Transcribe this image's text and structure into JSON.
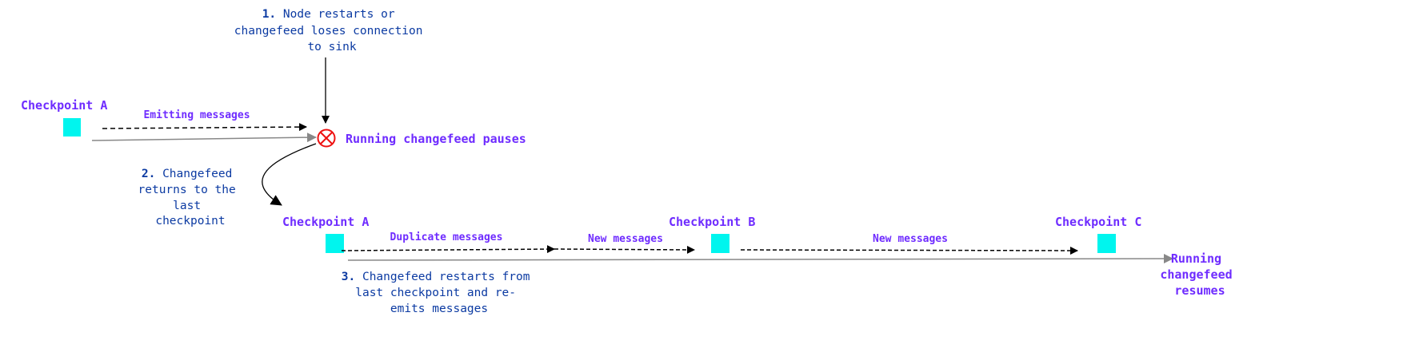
{
  "colors": {
    "label": "#6f2cff",
    "note": "#0b3aa2",
    "checkpoint": "#00f5ee",
    "error": "#ee1111",
    "arrow": "#000000",
    "timeline": "#888888"
  },
  "top": {
    "checkpoint_a": "Checkpoint A",
    "emitting": "Emitting messages",
    "pause_label": "Running changefeed pauses",
    "pause_icon": "circle-x-icon"
  },
  "notes": {
    "step1": {
      "num": "1.",
      "lines": [
        "Node restarts or",
        "changefeed loses connection",
        "to sink"
      ]
    },
    "step2": {
      "num": "2.",
      "lines": [
        "Changefeed",
        "returns to the",
        "last",
        "checkpoint"
      ]
    },
    "step3": {
      "num": "3.",
      "lines": [
        "Changefeed restarts from",
        "last checkpoint and re-",
        "emits messages"
      ]
    }
  },
  "bottom": {
    "checkpoint_a": "Checkpoint A",
    "checkpoint_b": "Checkpoint B",
    "checkpoint_c": "Checkpoint C",
    "duplicate": "Duplicate messages",
    "new1": "New messages",
    "new2": "New messages",
    "resume_lines": [
      "Running",
      "changefeed",
      "resumes"
    ]
  }
}
